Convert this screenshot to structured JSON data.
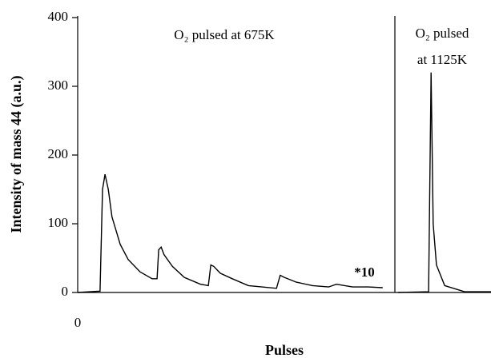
{
  "chart_data": {
    "type": "line",
    "y_label": "Intensity of mass 44 (a.u.)",
    "x_label": "Pulses",
    "annotations": [
      {
        "lines": [
          "O₂ pulsed at 675K"
        ]
      },
      {
        "lines": [
          "O₂ pulsed",
          "at 1125K"
        ]
      },
      {
        "lines": [
          "*10"
        ]
      }
    ],
    "xlim": [
      0,
      100
    ],
    "xticks": [
      0
    ],
    "ylim": [
      0,
      400
    ],
    "yticks": [
      0,
      100,
      200,
      300,
      400
    ],
    "color": "#000000",
    "x": [
      0,
      5.4,
      6.0,
      6.6,
      7.4,
      8.3,
      10.3,
      12.2,
      15.1,
      18.0,
      19.2,
      19.6,
      20.2,
      20.9,
      22.9,
      25.8,
      29.7,
      31.6,
      32.2,
      32.9,
      34.5,
      37.4,
      41.3,
      48.1,
      49.0,
      50.0,
      52.9,
      56.8,
      60.7,
      62.6,
      66.5,
      70.3,
      73.8,
      75.5,
      77.5,
      84.9,
      85.5,
      86.0,
      86.8,
      88.8,
      93.6,
      100
    ],
    "values": [
      0,
      2,
      150,
      172,
      150,
      110,
      70,
      48,
      30,
      20,
      20,
      62,
      66,
      55,
      38,
      22,
      12,
      10,
      40,
      38,
      28,
      20,
      10,
      6,
      25,
      22,
      15,
      10,
      8,
      12,
      8,
      8,
      7,
      null,
      0,
      1,
      320,
      100,
      40,
      10,
      1,
      1
    ]
  }
}
